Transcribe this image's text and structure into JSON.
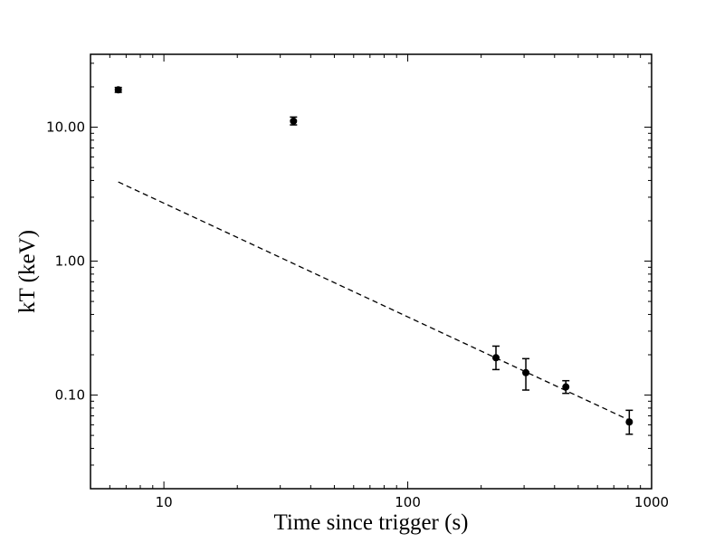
{
  "chart_data": {
    "type": "scatter",
    "xlabel": "Time since trigger (s)",
    "ylabel": "kT (keV)",
    "x_scale": "log",
    "y_scale": "log",
    "xlim": [
      5,
      1000
    ],
    "ylim": [
      0.02,
      35
    ],
    "x_ticks": [
      {
        "value": 10,
        "label": "10"
      },
      {
        "value": 100,
        "label": "100"
      },
      {
        "value": 1000,
        "label": "1000"
      }
    ],
    "y_ticks": [
      {
        "value": 0.1,
        "label": "0.10"
      },
      {
        "value": 1,
        "label": "1.00"
      },
      {
        "value": 10,
        "label": "10.00"
      }
    ],
    "grid": false,
    "series": [
      {
        "kind": "points_with_errorbars",
        "color": "#000000",
        "points": [
          {
            "x": 6.5,
            "y": 19.0,
            "y_lo": 18.2,
            "y_hi": 19.8
          },
          {
            "x": 34,
            "y": 11.1,
            "y_lo": 10.4,
            "y_hi": 11.9
          },
          {
            "x": 230,
            "y": 0.19,
            "y_lo": 0.155,
            "y_hi": 0.232
          },
          {
            "x": 305,
            "y": 0.147,
            "y_lo": 0.109,
            "y_hi": 0.187
          },
          {
            "x": 445,
            "y": 0.115,
            "y_lo": 0.103,
            "y_hi": 0.128
          },
          {
            "x": 810,
            "y": 0.063,
            "y_lo": 0.051,
            "y_hi": 0.077
          }
        ]
      },
      {
        "kind": "dashed_line",
        "color": "#000000",
        "points": [
          {
            "x": 6.5,
            "y": 3.9
          },
          {
            "x": 810,
            "y": 0.065
          }
        ]
      }
    ]
  }
}
